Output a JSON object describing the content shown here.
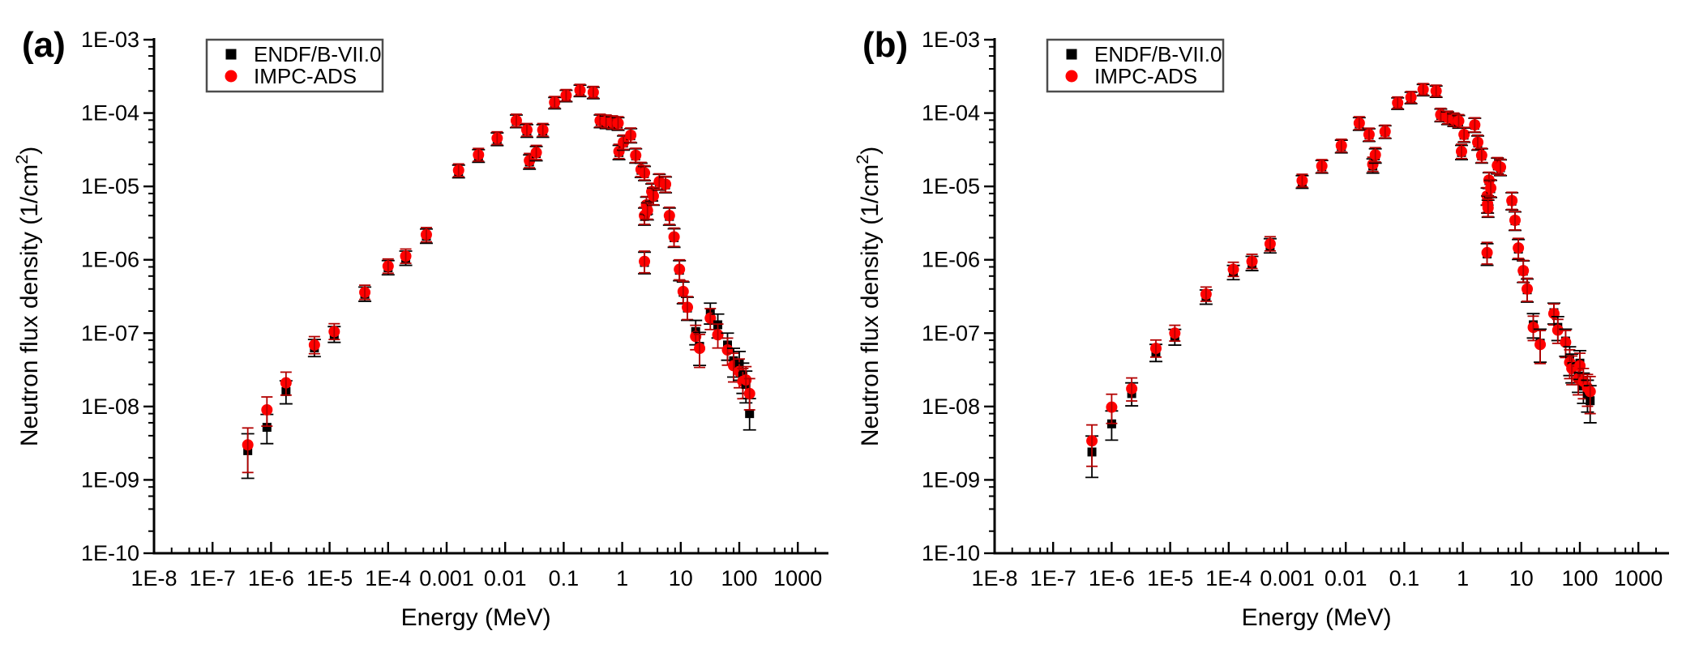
{
  "figure": {
    "background": "#ffffff",
    "xlabel": "Energy (MeV)",
    "ylabel_prefix": "Neutron flux density (1/cm",
    "ylabel_sup": "2",
    "ylabel_suffix": ")",
    "x_tick_labels": [
      "1E-8",
      "1E-7",
      "1E-6",
      "1E-5",
      "1E-4",
      "0.001",
      "0.01",
      "0.1",
      "1",
      "10",
      "100",
      "1000"
    ],
    "y_tick_labels": [
      "1E-03",
      "1E-04",
      "1E-05",
      "1E-06",
      "1E-07",
      "1E-08",
      "1E-09",
      "1E-10"
    ],
    "legend": [
      {
        "label": "ENDF/B-VII.0",
        "marker": "square",
        "color": "#000000"
      },
      {
        "label": "IMPC-ADS",
        "marker": "circle",
        "color": "#ff0000"
      }
    ],
    "colors": {
      "endf": "#000000",
      "impc": "#ff0000",
      "impc_error": "#b30000",
      "axis": "#000000",
      "legend_border": "#4d4d4d"
    }
  },
  "chart_data": [
    {
      "type": "scatter",
      "panel_label": "(a)",
      "xlabel": "Energy (MeV)",
      "ylabel": "Neutron flux density (1/cm2)",
      "xscale": "log",
      "yscale": "log",
      "xlim": [
        1e-08,
        1000
      ],
      "ylim": [
        1e-10,
        0.001
      ],
      "legend_position": "top-left",
      "series_names": [
        "ENDF/B-VII.0",
        "IMPC-ADS"
      ],
      "points_format": [
        "energy_MeV",
        "flux_ENDF_B_VII0",
        "flux_IMPC_ADS",
        "err_factor_low",
        "err_factor_high"
      ],
      "points": [
        [
          4e-07,
          2.5e-09,
          3e-09,
          0.42,
          1.7
        ],
        [
          8.5e-07,
          5.2e-09,
          9e-09,
          0.6,
          1.5
        ],
        [
          1.8e-06,
          1.6e-08,
          2.1e-08,
          0.68,
          1.4
        ],
        [
          5.5e-06,
          6.3e-08,
          6.9e-08,
          0.76,
          1.3
        ],
        [
          1.2e-05,
          9.6e-08,
          1.05e-07,
          0.78,
          1.28
        ],
        [
          4e-05,
          3.4e-07,
          3.6e-07,
          0.8,
          1.25
        ],
        [
          0.0001,
          7.8e-07,
          8.2e-07,
          0.8,
          1.25
        ],
        [
          0.0002,
          1.05e-06,
          1.12e-06,
          0.8,
          1.25
        ],
        [
          0.00045,
          2.1e-06,
          2.2e-06,
          0.8,
          1.25
        ],
        [
          0.0016,
          1.6e-05,
          1.66e-05,
          0.82,
          1.22
        ],
        [
          0.0035,
          2.6e-05,
          2.7e-05,
          0.82,
          1.22
        ],
        [
          0.0073,
          4.4e-05,
          4.55e-05,
          0.82,
          1.22
        ],
        [
          0.0155,
          7.7e-05,
          7.9e-05,
          0.82,
          1.22
        ],
        [
          0.0235,
          5.7e-05,
          5.9e-05,
          0.82,
          1.22
        ],
        [
          0.026,
          2.15e-05,
          2.25e-05,
          0.8,
          1.25
        ],
        [
          0.034,
          2.8e-05,
          2.9e-05,
          0.8,
          1.25
        ],
        [
          0.044,
          5.7e-05,
          5.9e-05,
          0.82,
          1.22
        ],
        [
          0.07,
          0.000136,
          0.00014,
          0.84,
          1.2
        ],
        [
          0.11,
          0.00017,
          0.000174,
          0.84,
          1.2
        ],
        [
          0.19,
          0.0002,
          0.000205,
          0.84,
          1.2
        ],
        [
          0.32,
          0.000187,
          0.000192,
          0.84,
          1.2
        ],
        [
          0.42,
          7.7e-05,
          7.9e-05,
          0.82,
          1.22
        ],
        [
          0.53,
          7.5e-05,
          7.7e-05,
          0.82,
          1.22
        ],
        [
          0.68,
          7.3e-05,
          7.5e-05,
          0.82,
          1.22
        ],
        [
          0.85,
          7.1e-05,
          7.3e-05,
          0.82,
          1.22
        ],
        [
          0.88,
          2.9e-05,
          3e-05,
          0.8,
          1.25
        ],
        [
          1.05,
          3.9e-05,
          4e-05,
          0.8,
          1.25
        ],
        [
          1.4,
          4.9e-05,
          5e-05,
          0.8,
          1.25
        ],
        [
          1.7,
          2.6e-05,
          2.65e-05,
          0.8,
          1.25
        ],
        [
          2.1,
          1.66e-05,
          1.7e-05,
          0.8,
          1.25
        ],
        [
          2.4,
          1.5e-05,
          1.53e-05,
          0.8,
          1.25
        ],
        [
          2.4,
          3.9e-06,
          4e-06,
          0.76,
          1.3
        ],
        [
          2.6,
          5.5e-06,
          5.6e-06,
          0.76,
          1.3
        ],
        [
          2.7,
          4.6e-06,
          4.7e-06,
          0.76,
          1.3
        ],
        [
          3.2,
          8.3e-06,
          8.5e-06,
          0.76,
          1.3
        ],
        [
          3.4,
          7.3e-06,
          7.4e-06,
          0.76,
          1.3
        ],
        [
          4.3,
          1.14e-05,
          1.16e-05,
          0.78,
          1.28
        ],
        [
          5.5,
          1.05e-05,
          1.07e-05,
          0.78,
          1.28
        ],
        [
          6.4,
          3.9e-06,
          4e-06,
          0.76,
          1.3
        ],
        [
          7.7,
          2e-06,
          2.05e-06,
          0.74,
          1.32
        ],
        [
          2.4,
          9.2e-07,
          9.5e-07,
          0.7,
          1.38
        ],
        [
          9.5,
          7.2e-07,
          7.4e-07,
          0.72,
          1.35
        ],
        [
          11,
          3.6e-07,
          3.7e-07,
          0.7,
          1.38
        ],
        [
          13,
          2.2e-07,
          2.25e-07,
          0.68,
          1.4
        ],
        [
          18,
          1.05e-07,
          9e-08,
          0.66,
          1.42
        ],
        [
          21,
          6.6e-08,
          6.2e-08,
          0.55,
          1.55
        ],
        [
          32,
          1.9e-07,
          1.6e-07,
          0.7,
          1.35
        ],
        [
          43,
          1.3e-07,
          9.5e-08,
          0.66,
          1.4
        ],
        [
          63,
          6.9e-08,
          5.9e-08,
          0.62,
          1.45
        ],
        [
          80,
          4.2e-08,
          3.6e-08,
          0.6,
          1.48
        ],
        [
          100,
          3.8e-08,
          3e-08,
          0.6,
          1.48
        ],
        [
          115,
          2.6e-08,
          2.2e-08,
          0.58,
          1.5
        ],
        [
          130,
          2e-08,
          2.3e-08,
          0.56,
          1.52
        ],
        [
          150,
          8e-09,
          1.5e-08,
          0.6,
          1.6
        ]
      ]
    },
    {
      "type": "scatter",
      "panel_label": "(b)",
      "xlabel": "Energy (MeV)",
      "ylabel": "Neutron flux density (1/cm2)",
      "xscale": "log",
      "yscale": "log",
      "xlim": [
        1e-08,
        1000
      ],
      "ylim": [
        1e-10,
        0.001
      ],
      "legend_position": "top-left",
      "series_names": [
        "ENDF/B-VII.0",
        "IMPC-ADS"
      ],
      "points_format": [
        "energy_MeV",
        "flux_ENDF_B_VII0",
        "flux_IMPC_ADS",
        "err_factor_low",
        "err_factor_high"
      ],
      "points": [
        [
          4.6e-07,
          2.4e-09,
          3.4e-09,
          0.45,
          1.65
        ],
        [
          1e-06,
          5.8e-09,
          9.8e-09,
          0.6,
          1.5
        ],
        [
          2.2e-06,
          1.5e-08,
          1.75e-08,
          0.68,
          1.4
        ],
        [
          5.7e-06,
          5.4e-08,
          6.2e-08,
          0.76,
          1.3
        ],
        [
          1.2e-05,
          8.8e-08,
          1e-07,
          0.78,
          1.28
        ],
        [
          4.1e-05,
          3.1e-07,
          3.4e-07,
          0.8,
          1.25
        ],
        [
          0.00012,
          6.7e-07,
          7.4e-07,
          0.8,
          1.25
        ],
        [
          0.00025,
          8.9e-07,
          9.5e-07,
          0.8,
          1.25
        ],
        [
          0.00051,
          1.55e-06,
          1.65e-06,
          0.8,
          1.25
        ],
        [
          0.0018,
          1.15e-05,
          1.2e-05,
          0.82,
          1.22
        ],
        [
          0.0039,
          1.85e-05,
          1.9e-05,
          0.82,
          1.22
        ],
        [
          0.0084,
          3.5e-05,
          3.6e-05,
          0.82,
          1.22
        ],
        [
          0.017,
          7.1e-05,
          7.3e-05,
          0.82,
          1.22
        ],
        [
          0.025,
          5e-05,
          5.1e-05,
          0.82,
          1.22
        ],
        [
          0.029,
          1.9e-05,
          2e-05,
          0.8,
          1.25
        ],
        [
          0.032,
          2.6e-05,
          2.7e-05,
          0.8,
          1.25
        ],
        [
          0.047,
          5.5e-05,
          5.6e-05,
          0.82,
          1.22
        ],
        [
          0.077,
          0.000134,
          0.000138,
          0.84,
          1.2
        ],
        [
          0.13,
          0.00016,
          0.000164,
          0.84,
          1.2
        ],
        [
          0.21,
          0.000205,
          0.00021,
          0.84,
          1.2
        ],
        [
          0.35,
          0.000195,
          0.0002,
          0.84,
          1.2
        ],
        [
          0.42,
          9.3e-05,
          9.5e-05,
          0.82,
          1.22
        ],
        [
          0.55,
          8.5e-05,
          8.7e-05,
          0.82,
          1.22
        ],
        [
          0.7,
          8e-05,
          8.2e-05,
          0.82,
          1.22
        ],
        [
          0.85,
          7.6e-05,
          7.8e-05,
          0.82,
          1.22
        ],
        [
          0.95,
          2.9e-05,
          3e-05,
          0.8,
          1.25
        ],
        [
          1.05,
          5e-05,
          5.1e-05,
          0.8,
          1.25
        ],
        [
          1.6,
          6.8e-05,
          6.9e-05,
          0.8,
          1.25
        ],
        [
          1.8,
          3.9e-05,
          4e-05,
          0.8,
          1.25
        ],
        [
          2.1,
          2.6e-05,
          2.65e-05,
          0.8,
          1.25
        ],
        [
          2.6,
          7.3e-06,
          7.4e-06,
          0.76,
          1.3
        ],
        [
          2.65,
          5.7e-06,
          5.8e-06,
          0.76,
          1.3
        ],
        [
          2.7,
          5e-06,
          5.1e-06,
          0.76,
          1.3
        ],
        [
          2.8,
          1.2e-05,
          1.22e-05,
          0.78,
          1.28
        ],
        [
          3.0,
          9.3e-06,
          9.5e-06,
          0.76,
          1.3
        ],
        [
          3.9,
          1.9e-05,
          1.93e-05,
          0.78,
          1.28
        ],
        [
          4.4,
          1.8e-05,
          1.83e-05,
          0.78,
          1.28
        ],
        [
          6.9,
          6.3e-06,
          6.4e-06,
          0.76,
          1.3
        ],
        [
          7.8,
          3.4e-06,
          3.45e-06,
          0.74,
          1.32
        ],
        [
          2.6,
          1.2e-06,
          1.25e-06,
          0.7,
          1.38
        ],
        [
          8.9,
          1.4e-06,
          1.45e-06,
          0.72,
          1.35
        ],
        [
          10.8,
          7e-07,
          7.1e-07,
          0.7,
          1.38
        ],
        [
          12.6,
          3.9e-07,
          4e-07,
          0.68,
          1.4
        ],
        [
          16,
          1.3e-07,
          1.2e-07,
          0.66,
          1.42
        ],
        [
          21,
          7.3e-08,
          7e-08,
          0.55,
          1.55
        ],
        [
          36,
          1.9e-07,
          1.85e-07,
          0.7,
          1.35
        ],
        [
          42,
          1.2e-07,
          1.1e-07,
          0.66,
          1.4
        ],
        [
          57,
          7.8e-08,
          7.5e-08,
          0.62,
          1.45
        ],
        [
          67,
          4.4e-08,
          4e-08,
          0.6,
          1.48
        ],
        [
          73,
          3.5e-08,
          3.3e-08,
          0.6,
          1.48
        ],
        [
          94,
          2.6e-08,
          2.4e-08,
          0.6,
          1.48
        ],
        [
          100,
          3.9e-08,
          3.6e-08,
          0.6,
          1.48
        ],
        [
          115,
          1.9e-08,
          2.2e-08,
          0.58,
          1.5
        ],
        [
          135,
          1.5e-08,
          1.8e-08,
          0.56,
          1.52
        ],
        [
          150,
          1.2e-08,
          1.6e-08,
          0.5,
          1.6
        ]
      ]
    }
  ]
}
